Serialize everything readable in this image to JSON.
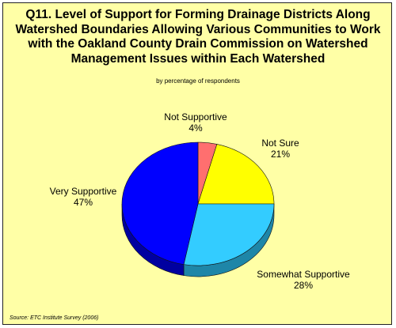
{
  "chart_data": {
    "type": "pie",
    "title": "Q11. Level of Support for Forming Drainage Districts Along Watershed Boundaries Allowing Various Communities to Work with the Oakland County Drain Commission on Watershed Management Issues within Each Watershed",
    "subtitle": "by percentage of respondents",
    "source": "Source: ETC Institute Survey (2006)",
    "three_d": true,
    "slices": [
      {
        "label": "Not Supportive",
        "value": 4,
        "value_label": "4%",
        "color": "#ff6f6f",
        "side_color": "#b94a4a"
      },
      {
        "label": "Not Sure",
        "value": 21,
        "value_label": "21%",
        "color": "#ffff00",
        "side_color": "#a8a800"
      },
      {
        "label": "Somewhat Supportive",
        "value": 28,
        "value_label": "28%",
        "color": "#33ccff",
        "side_color": "#1e86a8"
      },
      {
        "label": "Very Supportive",
        "value": 47,
        "value_label": "47%",
        "color": "#0000ff",
        "side_color": "#0000a0"
      }
    ]
  }
}
